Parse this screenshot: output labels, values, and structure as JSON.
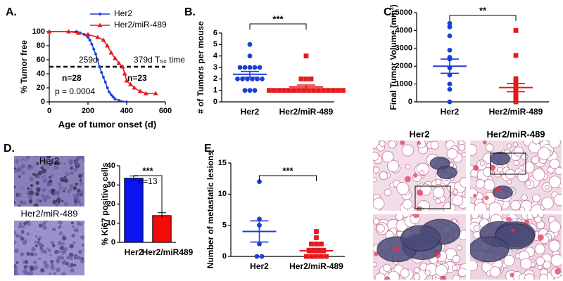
{
  "chart_data": [
    {
      "panel_label": "A.",
      "type": "line",
      "xlabel": "Age of tumor onset (d)",
      "ylabel": "% Tumor free",
      "xlim": [
        0,
        600
      ],
      "xticks": [
        0,
        200,
        400,
        600
      ],
      "ylim": [
        0,
        100
      ],
      "yticks": [
        0,
        20,
        40,
        60,
        80,
        100
      ],
      "reference_line": 50,
      "series": [
        {
          "name": "Her2",
          "color": "#1a3fd6",
          "marker": "diamond",
          "x": [
            0,
            140,
            160,
            180,
            200,
            210,
            220,
            230,
            240,
            250,
            259,
            270,
            280,
            290,
            300,
            310,
            320,
            330,
            340,
            360,
            400
          ],
          "values": [
            100,
            100,
            98,
            96,
            92,
            88,
            82,
            75,
            68,
            60,
            50,
            42,
            35,
            28,
            20,
            14,
            10,
            7,
            4,
            2,
            0
          ]
        },
        {
          "name": "Her2/miR-489",
          "color": "#e41a1c",
          "marker": "triangle",
          "x": [
            0,
            100,
            150,
            200,
            250,
            280,
            300,
            320,
            340,
            360,
            379,
            390,
            400,
            420,
            440,
            470,
            500,
            550
          ],
          "values": [
            100,
            100,
            98,
            96,
            92,
            88,
            80,
            70,
            62,
            55,
            50,
            40,
            30,
            25,
            20,
            15,
            12,
            12
          ]
        }
      ],
      "annotations": [
        {
          "text": "259d",
          "color": "#1a3fd6"
        },
        {
          "text": "379d T₅₀ time",
          "color": "#e41a1c"
        },
        {
          "text": "n=28",
          "color": "#000000"
        },
        {
          "text": "n=23",
          "color": "#000000"
        },
        {
          "text": "p = 0.0004",
          "color": "#000000"
        }
      ]
    },
    {
      "panel_label": "B.",
      "type": "dot",
      "ylabel": "# of Tumors per mouse",
      "ylim": [
        0,
        6
      ],
      "yticks": [
        0,
        1,
        2,
        3,
        4,
        5,
        6
      ],
      "significance": "***",
      "categories": [
        "Her2",
        "Her2/miR-489"
      ],
      "colors": [
        "#1a3fd6",
        "#e41a1c"
      ],
      "markers": [
        "circle",
        "square"
      ],
      "points": [
        [
          5,
          4,
          3,
          3,
          3,
          3,
          3,
          2,
          2,
          2,
          2,
          2,
          2,
          1,
          1,
          1
        ],
        [
          4,
          2,
          2,
          2,
          1,
          1,
          1,
          1,
          1,
          1,
          1,
          1,
          1,
          1,
          1,
          1,
          1,
          1,
          1,
          1
        ]
      ],
      "means": [
        2.4,
        1.3
      ],
      "sems": [
        0.25,
        0.17
      ]
    },
    {
      "panel_label": "C.",
      "type": "dot",
      "ylabel": "Final Tumor Volume (mm³)",
      "ylim": [
        0,
        5000
      ],
      "yticks": [
        0,
        1000,
        2000,
        3000,
        4000,
        5000
      ],
      "significance": "**",
      "categories": [
        "Her2",
        "Her2/miR-489"
      ],
      "colors": [
        "#1a3fd6",
        "#e41a1c"
      ],
      "markers": [
        "circle",
        "square"
      ],
      "points": [
        [
          4400,
          4200,
          3700,
          2900,
          2500,
          2400,
          1900,
          1500,
          1000,
          700,
          0
        ],
        [
          4000,
          2600,
          1300,
          1200,
          1000,
          900,
          800,
          700,
          600,
          500,
          400,
          300,
          200,
          100,
          0
        ]
      ],
      "means": [
        2000,
        800
      ],
      "sems": [
        400,
        230
      ]
    },
    {
      "panel_label": "D.",
      "type": "bar",
      "ylabel": "% Ki67 positive cells",
      "image_labels": [
        "Her2",
        "Her2/miR-489"
      ],
      "ylim": [
        0,
        40
      ],
      "yticks": [
        0,
        10,
        20,
        30,
        40
      ],
      "significance": "***",
      "annotation": "n=13",
      "categories": [
        "Her2",
        "Her2/miR489"
      ],
      "colors": [
        "#0a14f0",
        "#f50a0a"
      ],
      "values": [
        33.5,
        14
      ],
      "errors": [
        1.2,
        1.5
      ]
    },
    {
      "panel_label": "E.",
      "type": "dot",
      "ylabel": "Number of metastatic lesions",
      "image_labels": [
        "Her2",
        "Her2/miR-489"
      ],
      "ylim": [
        0,
        15
      ],
      "yticks": [
        0,
        5,
        10,
        15
      ],
      "significance": "***",
      "categories": [
        "Her2",
        "Her2/miR-489"
      ],
      "colors": [
        "#1a3fd6",
        "#e41a1c"
      ],
      "markers": [
        "circle",
        "square"
      ],
      "points": [
        [
          12,
          6,
          5,
          2,
          0,
          0
        ],
        [
          4,
          3,
          2,
          2,
          2,
          1,
          1,
          1,
          1,
          0,
          0,
          0,
          0,
          0
        ]
      ],
      "means": [
        4,
        0.9
      ],
      "sems": [
        1.7,
        0.3
      ]
    }
  ]
}
